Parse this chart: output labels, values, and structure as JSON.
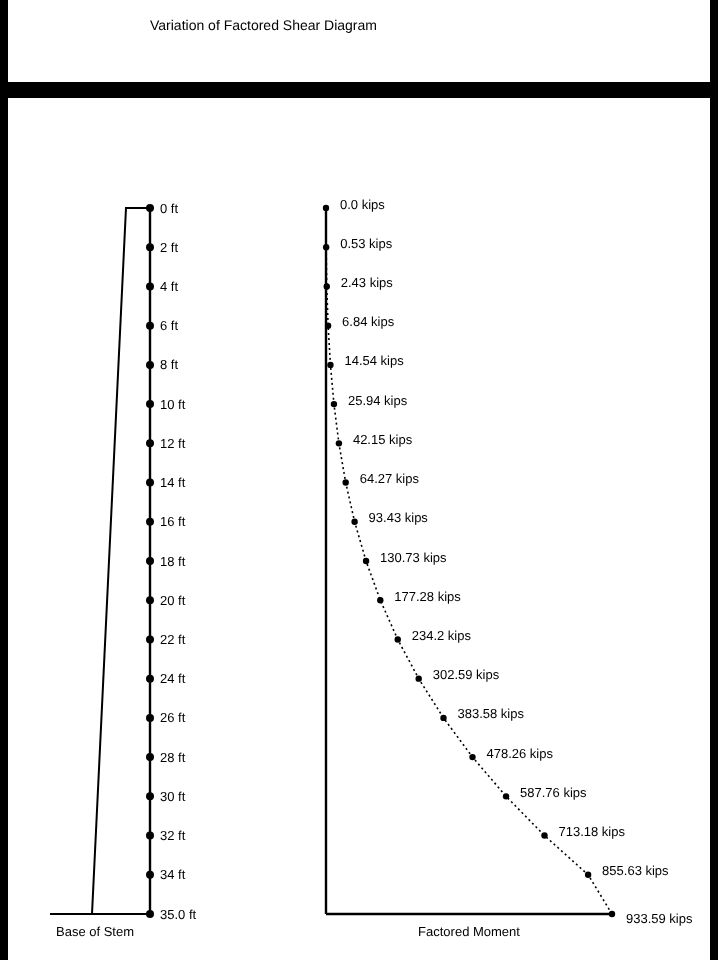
{
  "chart_data": {
    "type": "line",
    "orientation": "horizontal",
    "title": "Variation of Factored Shear Diagram",
    "xlabel": "Factored Moment",
    "annotations": [
      "Base of Stem"
    ],
    "categories": [
      "0 ft",
      "2 ft",
      "4 ft",
      "6 ft",
      "8 ft",
      "10 ft",
      "12 ft",
      "14 ft",
      "16 ft",
      "18 ft",
      "20 ft",
      "22 ft",
      "24 ft",
      "26 ft",
      "28 ft",
      "30 ft",
      "32 ft",
      "34 ft",
      "35.0 ft"
    ],
    "values": [
      0.0,
      0.53,
      2.43,
      6.84,
      14.54,
      25.94,
      42.15,
      64.27,
      93.43,
      130.73,
      177.28,
      234.2,
      302.59,
      383.58,
      478.26,
      587.76,
      713.18,
      855.63,
      933.59
    ],
    "value_labels": [
      "0.0 kips",
      "0.53 kips",
      "2.43 kips",
      "6.84 kips",
      "14.54 kips",
      "25.94 kips",
      "42.15 kips",
      "64.27 kips",
      "93.43 kips",
      "130.73 kips",
      "177.28 kips",
      "234.2 kips",
      "302.59 kips",
      "383.58 kips",
      "478.26 kips",
      "587.76 kips",
      "713.18 kips",
      "855.63 kips",
      "933.59 kips"
    ],
    "color": "#000000",
    "marker": "circle",
    "line_style": "dotted",
    "tick_labels": "y",
    "xlim": [
      0,
      933.59
    ]
  }
}
